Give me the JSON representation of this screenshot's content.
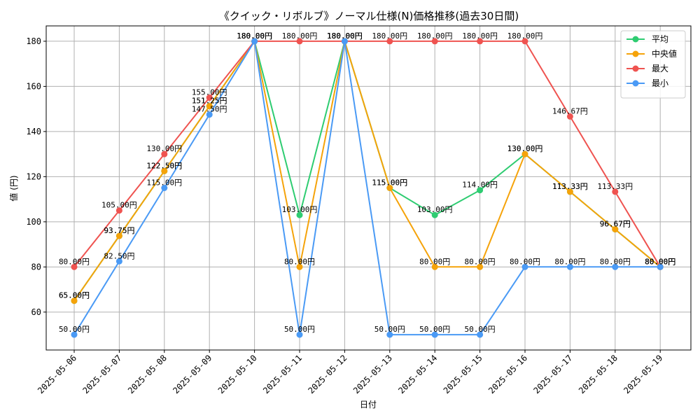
{
  "chart_data": {
    "type": "line",
    "title": "《クイック・リボルブ》ノーマル仕様(N)価格推移(過去30日間)",
    "xlabel": "日付",
    "ylabel": "値 (円)",
    "categories": [
      "2025-05-06",
      "2025-05-07",
      "2025-05-08",
      "2025-05-09",
      "2025-05-10",
      "2025-05-11",
      "2025-05-12",
      "2025-05-13",
      "2025-05-14",
      "2025-05-15",
      "2025-05-16",
      "2025-05-17",
      "2025-05-18",
      "2025-05-19"
    ],
    "ylim": [
      43.2,
      186.8
    ],
    "yticks": [
      60,
      80,
      100,
      120,
      140,
      160,
      180
    ],
    "grid": true,
    "legend_position": "top-right",
    "value_suffix": "円",
    "series": [
      {
        "name": "平均",
        "color": "#2ecc71",
        "values": [
          65.0,
          93.75,
          122.5,
          151.25,
          180.0,
          103.0,
          180.0,
          115.0,
          103.0,
          114.0,
          130.0,
          113.33,
          96.67,
          80.0
        ]
      },
      {
        "name": "中央値",
        "color": "#f5a30a",
        "values": [
          65.0,
          93.75,
          122.5,
          151.25,
          180.0,
          80.0,
          180.0,
          115.0,
          80.0,
          80.0,
          130.0,
          113.33,
          96.67,
          80.0
        ]
      },
      {
        "name": "最大",
        "color": "#ef5350",
        "values": [
          80.0,
          105.0,
          130.0,
          155.0,
          180.0,
          180.0,
          180.0,
          180.0,
          180.0,
          180.0,
          180.0,
          146.67,
          113.33,
          80.0
        ]
      },
      {
        "name": "最小",
        "color": "#4a9af5",
        "values": [
          50.0,
          82.5,
          115.0,
          147.5,
          180.0,
          50.0,
          180.0,
          50.0,
          50.0,
          50.0,
          80.0,
          80.0,
          80.0,
          80.0
        ]
      }
    ]
  }
}
